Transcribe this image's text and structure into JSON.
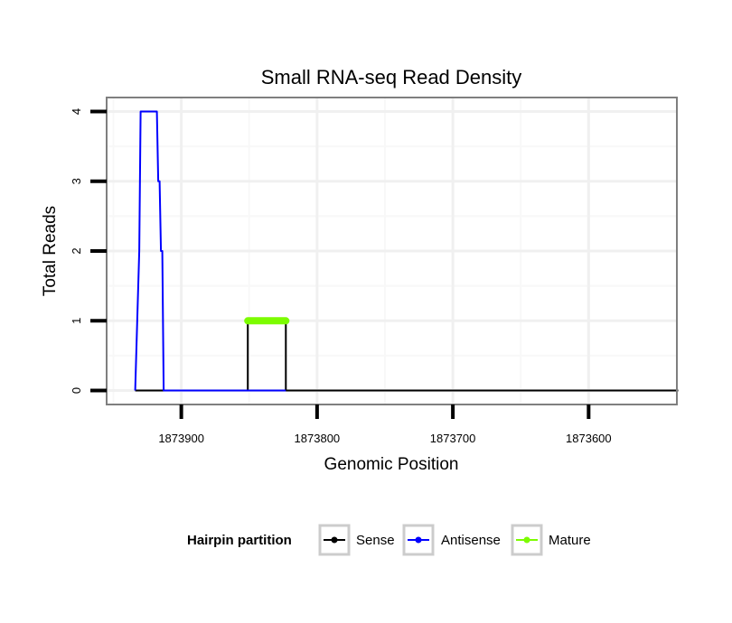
{
  "chart_data": {
    "type": "line",
    "title": "Small RNA-seq Read Density",
    "xlabel": "Genomic Position",
    "ylabel": "Total Reads",
    "x_reversed": true,
    "xlim": [
      1873955,
      1873535
    ],
    "ylim": [
      -0.2,
      4.2
    ],
    "x_ticks": [
      1873900,
      1873800,
      1873700,
      1873600
    ],
    "x_tick_labels": [
      "1873900",
      "1873800",
      "1873700",
      "1873600"
    ],
    "y_ticks": [
      0,
      1,
      2,
      3,
      4
    ],
    "y_tick_labels": [
      "0",
      "1",
      "2",
      "3",
      "4"
    ],
    "grid": true,
    "legend": {
      "title": "Hairpin partition",
      "position": "bottom",
      "entries": [
        "Sense",
        "Antisense",
        "Mature"
      ]
    },
    "series": [
      {
        "name": "Sense",
        "color": "#000000",
        "x": [
          1873934,
          1873851,
          1873851,
          1873823,
          1873823,
          1873534
        ],
        "y": [
          0,
          0,
          1,
          1,
          0,
          0
        ]
      },
      {
        "name": "Antisense",
        "color": "#0000ff",
        "x": [
          1873934,
          1873931,
          1873930,
          1873923,
          1873920,
          1873918,
          1873917,
          1873916,
          1873915,
          1873914,
          1873913,
          1873911,
          1873910,
          1873851,
          1873823
        ],
        "y": [
          0,
          2,
          4,
          4,
          4,
          4,
          3,
          3,
          2,
          2,
          0,
          0,
          0,
          0,
          0
        ]
      },
      {
        "name": "Mature",
        "color": "#7cfc00",
        "x": [
          1873851,
          1873823
        ],
        "y": [
          1,
          1
        ]
      }
    ]
  }
}
